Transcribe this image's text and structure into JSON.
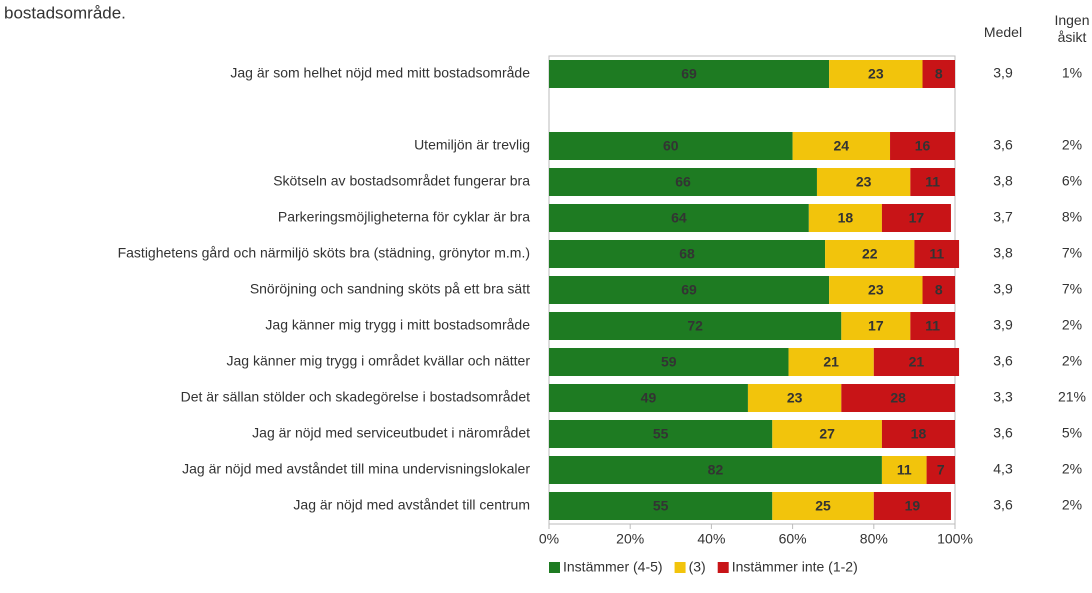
{
  "chart_data": {
    "type": "stacked_bar_horizontal",
    "title": "bostadsområde.",
    "categories": [
      "Jag är som helhet nöjd med mitt bostadsområde",
      null,
      "Utemiljön är trevlig",
      "Skötseln av bostadsområdet fungerar bra",
      "Parkeringsmöjligheterna för cyklar är bra",
      "Fastighetens gård och närmiljö sköts bra (städning, grönytor m.m.)",
      "Snöröjning och sandning sköts på ett bra sätt",
      "Jag känner mig trygg i mitt bostadsområde",
      "Jag känner mig trygg i området kvällar och nätter",
      "Det är sällan stölder och skadegörelse i bostadsområdet",
      "Jag är nöjd med serviceutbudet i närområdet",
      "Jag är nöjd med avståndet till mina undervisningslokaler",
      "Jag är nöjd med avståndet till centrum"
    ],
    "series": [
      {
        "name": "Instämmer (4-5)",
        "color": "#1e7b22",
        "values": [
          69,
          null,
          60,
          66,
          64,
          68,
          69,
          72,
          59,
          49,
          55,
          82,
          55
        ]
      },
      {
        "name": "(3)",
        "color": "#f2c40c",
        "values": [
          23,
          null,
          24,
          23,
          18,
          22,
          23,
          17,
          21,
          23,
          27,
          11,
          25
        ]
      },
      {
        "name": "Instämmer inte (1-2)",
        "color": "#c81417",
        "values": [
          8,
          null,
          16,
          11,
          17,
          11,
          8,
          11,
          21,
          28,
          18,
          7,
          19
        ]
      }
    ],
    "xlim": [
      0,
      100
    ],
    "xticks": [
      {
        "value": 0,
        "label": "0%"
      },
      {
        "value": 20,
        "label": "20%"
      },
      {
        "value": 40,
        "label": "40%"
      },
      {
        "value": 60,
        "label": "60%"
      },
      {
        "value": 80,
        "label": "80%"
      },
      {
        "value": 100,
        "label": "100%"
      }
    ],
    "columns": [
      {
        "header": "Medel",
        "values": [
          "3,9",
          null,
          "3,6",
          "3,8",
          "3,7",
          "3,8",
          "3,9",
          "3,9",
          "3,6",
          "3,3",
          "3,6",
          "4,3",
          "3,6"
        ]
      },
      {
        "header": "Ingen åsikt",
        "values": [
          "1%",
          null,
          "2%",
          "6%",
          "8%",
          "7%",
          "7%",
          "2%",
          "2%",
          "21%",
          "5%",
          "2%",
          "2%"
        ]
      }
    ],
    "legend": "bottom"
  }
}
